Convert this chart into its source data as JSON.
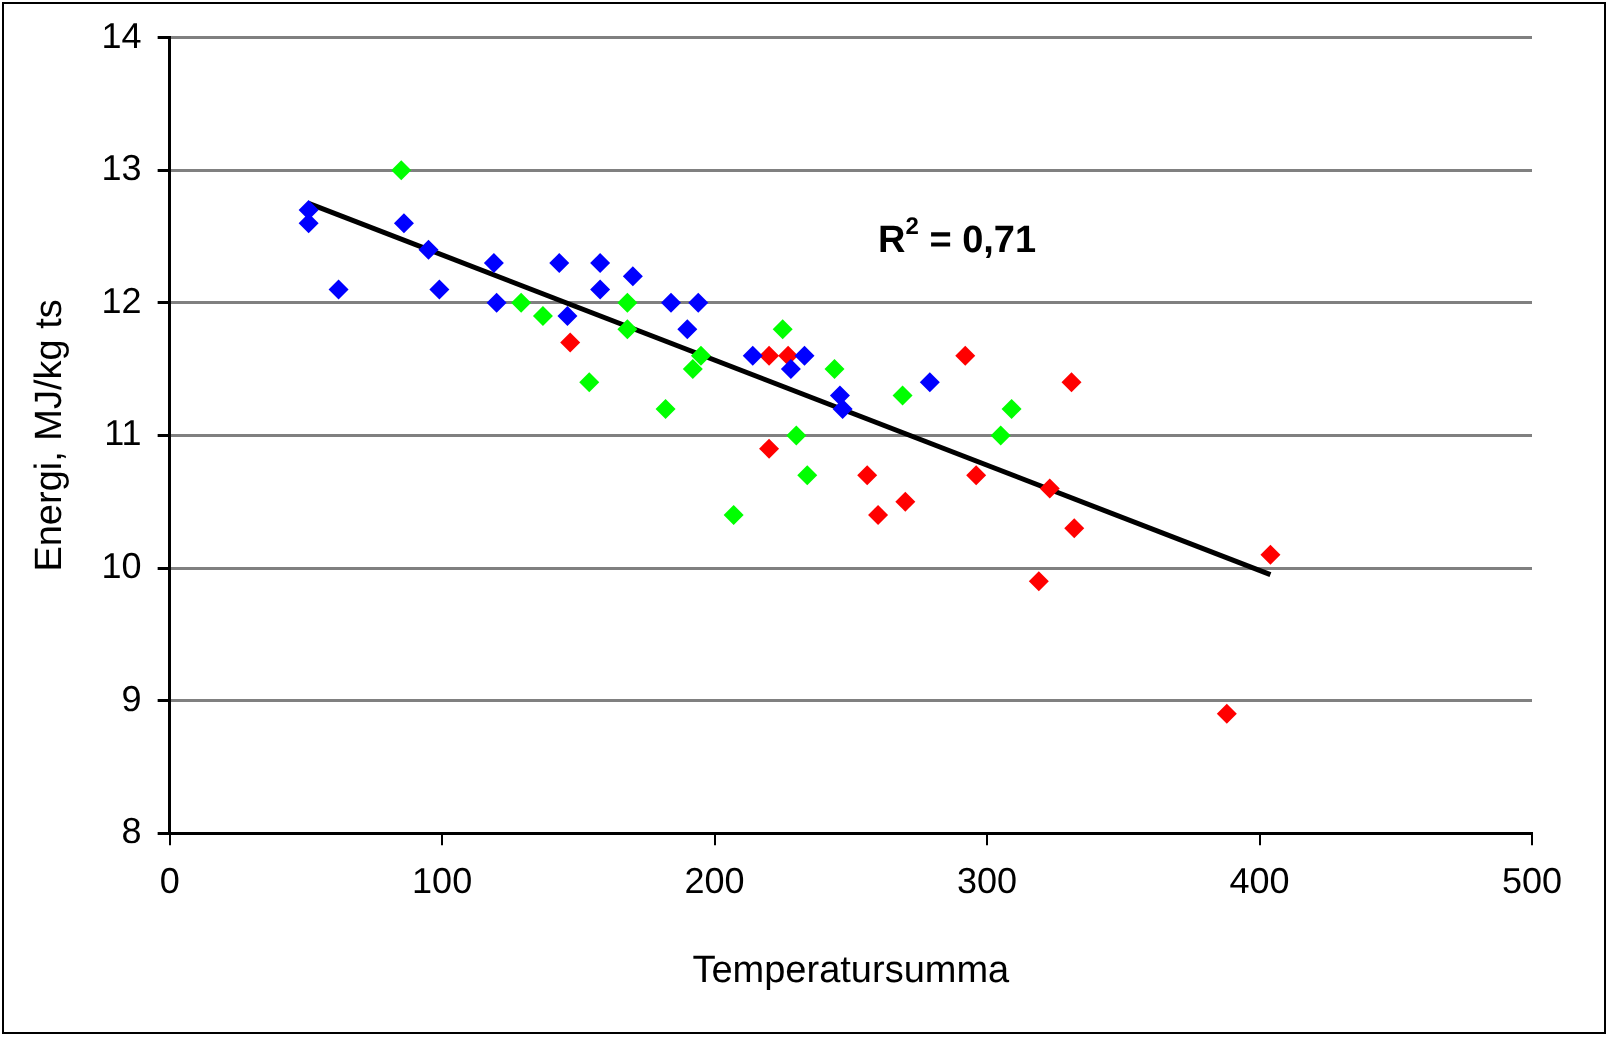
{
  "chart_data": {
    "type": "scatter",
    "xlabel": "Temperatursumma",
    "ylabel": "Energi, MJ/kg ts",
    "xlim": [
      0,
      500
    ],
    "xticks": [
      0,
      100,
      200,
      300,
      400,
      500
    ],
    "ylim": [
      8,
      14
    ],
    "yticks": [
      8,
      9,
      10,
      11,
      12,
      13,
      14
    ],
    "grid": "y",
    "legend": false,
    "marker": "diamond",
    "annotations": [
      "R$^{2}$ = 0,71"
    ],
    "series": [
      {
        "type": "scatter",
        "color": "#0000ff",
        "x": [
          51,
          51,
          62,
          86,
          95,
          99,
          119,
          120,
          143,
          146,
          158,
          158,
          170,
          184,
          194,
          190,
          214,
          228,
          233,
          246,
          247,
          279
        ],
        "values": [
          12.7,
          12.6,
          12.1,
          12.6,
          12.4,
          12.1,
          12.3,
          12.0,
          12.3,
          11.9,
          12.3,
          12.1,
          12.2,
          12.0,
          12.0,
          11.8,
          11.6,
          11.5,
          11.6,
          11.3,
          11.2,
          11.4
        ]
      },
      {
        "type": "scatter",
        "color": "#00ff00",
        "x": [
          85,
          129,
          137,
          154,
          168,
          168,
          182,
          192,
          195,
          207,
          225,
          230,
          234,
          244,
          269,
          305,
          309
        ],
        "values": [
          13.0,
          12.0,
          11.9,
          11.4,
          12.0,
          11.8,
          11.2,
          11.5,
          11.6,
          10.4,
          11.8,
          11.0,
          10.7,
          11.5,
          11.3,
          11.0,
          11.2
        ]
      },
      {
        "type": "scatter",
        "color": "#ff0000",
        "x": [
          147,
          220,
          227,
          220,
          292,
          256,
          260,
          270,
          296,
          319,
          331,
          323,
          332,
          388,
          404
        ],
        "values": [
          11.7,
          11.6,
          11.6,
          10.9,
          11.6,
          10.7,
          10.4,
          10.5,
          10.7,
          9.9,
          11.4,
          10.6,
          10.3,
          8.9,
          10.1
        ]
      },
      {
        "type": "line",
        "color": "#000000",
        "marker": "none",
        "line_style": "solid",
        "x": [
          51,
          404
        ],
        "values": [
          12.75,
          9.95
        ]
      }
    ]
  }
}
